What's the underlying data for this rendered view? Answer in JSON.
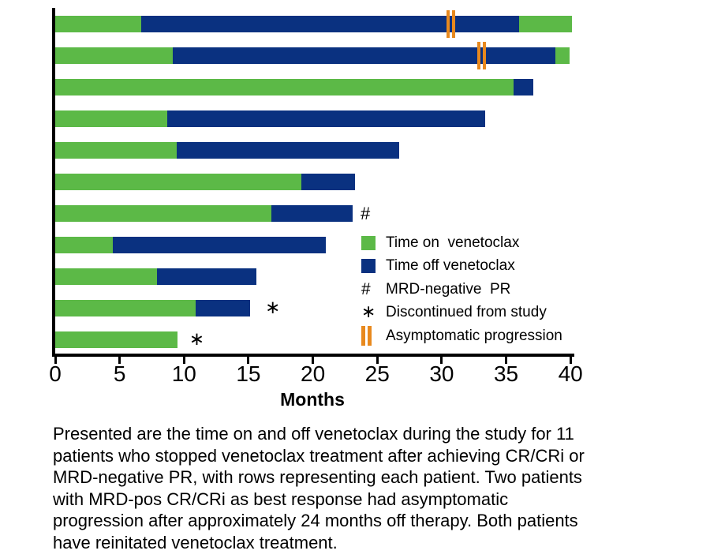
{
  "chart_data": {
    "type": "bar",
    "orientation": "horizontal",
    "title": "",
    "xlabel": "Months",
    "xlim": [
      0,
      40
    ],
    "xticks": [
      0,
      5,
      10,
      15,
      20,
      25,
      30,
      35,
      40
    ],
    "grid": false,
    "units": "months",
    "colors": {
      "time_on": "#5CB947",
      "time_off": "#0A3180",
      "progression": "#E8891E",
      "axis": "#000000"
    },
    "patients": [
      {
        "row": 1,
        "segments": [
          [
            "on",
            0,
            6.7
          ],
          [
            "off",
            6.7,
            36.0
          ],
          [
            "on",
            36.0,
            40.1
          ]
        ],
        "progression_marker": 30.7
      },
      {
        "row": 2,
        "segments": [
          [
            "on",
            0,
            9.1
          ],
          [
            "off",
            9.1,
            38.8
          ],
          [
            "on",
            38.8,
            39.9
          ]
        ],
        "progression_marker": 33.1
      },
      {
        "row": 3,
        "segments": [
          [
            "on",
            0,
            35.6
          ],
          [
            "off",
            35.6,
            37.1
          ]
        ]
      },
      {
        "row": 4,
        "segments": [
          [
            "on",
            0,
            8.7
          ],
          [
            "off",
            8.7,
            33.4
          ]
        ]
      },
      {
        "row": 5,
        "segments": [
          [
            "on",
            0,
            9.4
          ],
          [
            "off",
            9.4,
            26.7
          ]
        ]
      },
      {
        "row": 6,
        "segments": [
          [
            "on",
            0,
            19.1
          ],
          [
            "off",
            19.1,
            23.3
          ]
        ]
      },
      {
        "row": 7,
        "segments": [
          [
            "on",
            0,
            16.8
          ],
          [
            "off",
            16.8,
            23.1
          ]
        ],
        "annotation": {
          "symbol": "#",
          "meaning": "MRD-negative PR",
          "x": 23.7
        }
      },
      {
        "row": 8,
        "segments": [
          [
            "on",
            0,
            4.5
          ],
          [
            "off",
            4.5,
            21.0
          ]
        ]
      },
      {
        "row": 9,
        "segments": [
          [
            "on",
            0,
            7.9
          ],
          [
            "off",
            7.9,
            15.6
          ]
        ]
      },
      {
        "row": 10,
        "segments": [
          [
            "on",
            0,
            10.9
          ],
          [
            "off",
            10.9,
            15.1
          ]
        ],
        "annotation": {
          "symbol": "∗",
          "meaning": "Discontinued from study",
          "x": 16.3
        }
      },
      {
        "row": 11,
        "segments": [
          [
            "on",
            0,
            9.5
          ]
        ],
        "annotation": {
          "symbol": "∗",
          "meaning": "Discontinued from study",
          "x": 10.4
        }
      }
    ],
    "legend": [
      {
        "icon": "swatch-on",
        "label": "Time on  venetoclax"
      },
      {
        "icon": "swatch-off",
        "label": "Time off venetoclax"
      },
      {
        "icon": "hash",
        "label": "MRD-negative  PR"
      },
      {
        "icon": "asterisk",
        "label": "Discontinued from study"
      },
      {
        "icon": "double-bar",
        "label": "Asymptomatic progression"
      }
    ],
    "legend_position": "inside-right"
  },
  "caption_lines": [
    "Presented are the time on and off venetoclax during the study for 11",
    "patients who stopped venetoclax treatment after achieving CR/CRi or",
    "MRD-negative PR, with rows representing each patient. Two patients",
    "with MRD-pos CR/CRi as best response had asymptomatic",
    "progression after approximately 24 months off therapy. Both patients",
    "have reinitated venetoclax treatment."
  ]
}
